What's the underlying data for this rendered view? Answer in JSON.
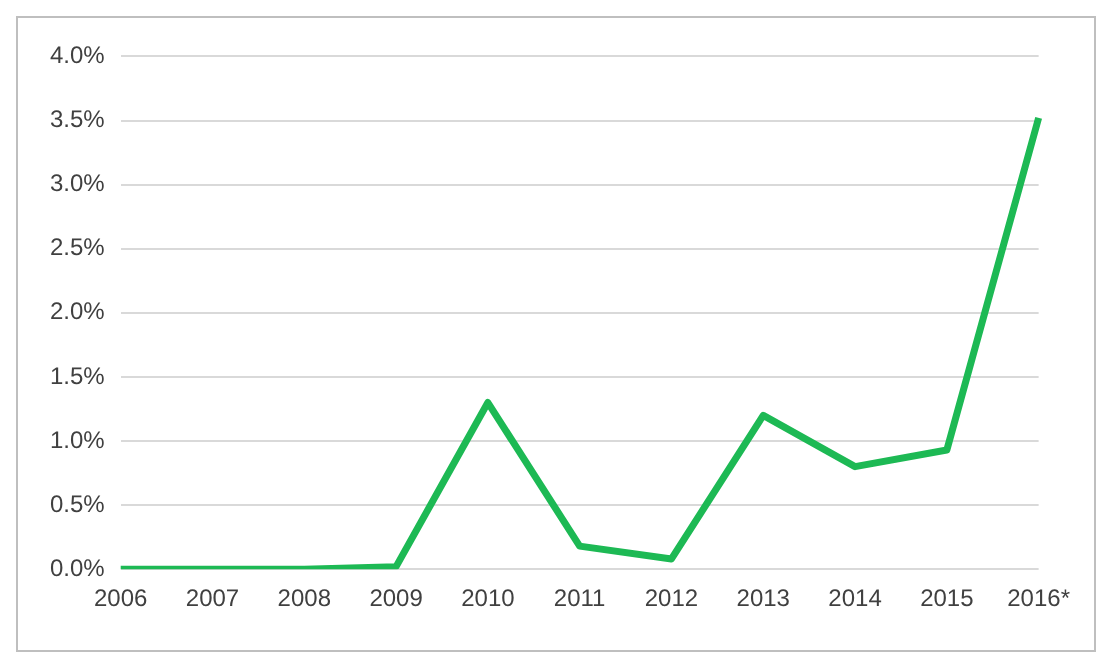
{
  "chart_data": {
    "type": "line",
    "categories": [
      "2006",
      "2007",
      "2008",
      "2009",
      "2010",
      "2011",
      "2012",
      "2013",
      "2014",
      "2015",
      "2016*"
    ],
    "series": [
      {
        "color": "#1db954",
        "values": [
          0,
          0,
          0,
          0.02,
          1.3,
          0.18,
          0.08,
          1.2,
          0.8,
          0.93,
          3.52
        ]
      }
    ],
    "ylim": [
      0,
      4
    ],
    "yticks": [
      {
        "value": 0,
        "label": "0.0%"
      },
      {
        "value": 0.5,
        "label": "0.5%"
      },
      {
        "value": 1,
        "label": "1.0%"
      },
      {
        "value": 1.5,
        "label": "1.5%"
      },
      {
        "value": 2,
        "label": "2.0%"
      },
      {
        "value": 2.5,
        "label": "2.5%"
      },
      {
        "value": 3,
        "label": "3.0%"
      },
      {
        "value": 3.5,
        "label": "3.5%"
      },
      {
        "value": 4,
        "label": "4.0%"
      }
    ],
    "grid": "y",
    "marker": "none",
    "line_style": "solid",
    "legend": false
  }
}
